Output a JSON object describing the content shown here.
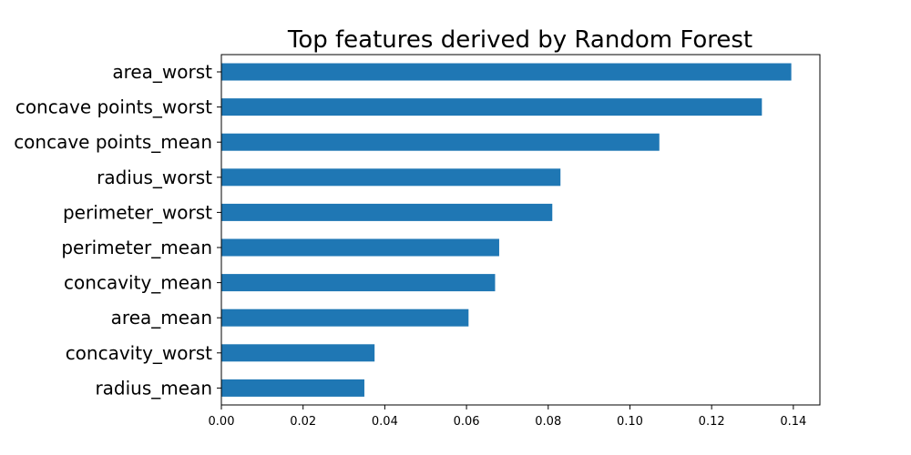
{
  "chart_data": {
    "type": "bar",
    "orientation": "horizontal",
    "title": "Top features derived by Random Forest",
    "xlabel": "",
    "ylabel": "",
    "categories": [
      "area_worst",
      "concave points_worst",
      "concave points_mean",
      "radius_worst",
      "perimeter_worst",
      "perimeter_mean",
      "concavity_mean",
      "area_mean",
      "concavity_worst",
      "radius_mean"
    ],
    "values": [
      0.1395,
      0.1323,
      0.1072,
      0.083,
      0.081,
      0.068,
      0.067,
      0.0605,
      0.0375,
      0.035
    ],
    "xlim": [
      0.0,
      0.1465
    ],
    "xticks": [
      0.0,
      0.02,
      0.04,
      0.06,
      0.08,
      0.1,
      0.12,
      0.14
    ],
    "xtick_labels": [
      "0.00",
      "0.02",
      "0.04",
      "0.06",
      "0.08",
      "0.10",
      "0.12",
      "0.14"
    ],
    "grid": false,
    "legend": "none",
    "bar_color": "#1f77b4"
  }
}
